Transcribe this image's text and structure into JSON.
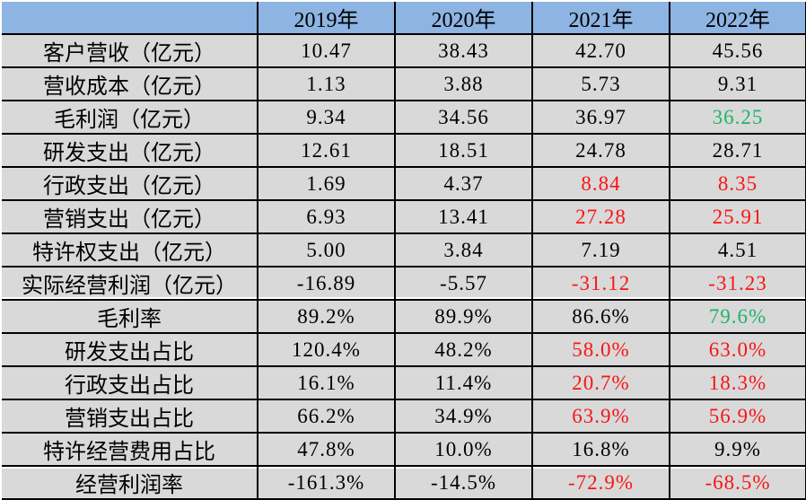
{
  "palette": {
    "header_bg": "#8db4e2",
    "row_bg": "#d9d9d9",
    "border": "#000000",
    "text": "#000000",
    "red": "#fa1414",
    "green": "#1fb46a"
  },
  "chart_data": {
    "type": "table",
    "title": "",
    "columns": [
      "",
      "2019年",
      "2020年",
      "2021年",
      "2022年"
    ],
    "rows": [
      {
        "label": "客户营收（亿元）",
        "values": [
          "10.47",
          "38.43",
          "42.70",
          "45.56"
        ],
        "colors": [
          "black",
          "black",
          "black",
          "black"
        ]
      },
      {
        "label": "营收成本（亿元）",
        "values": [
          "1.13",
          "3.88",
          "5.73",
          "9.31"
        ],
        "colors": [
          "black",
          "black",
          "black",
          "black"
        ]
      },
      {
        "label": "毛利润（亿元）",
        "values": [
          "9.34",
          "34.56",
          "36.97",
          "36.25"
        ],
        "colors": [
          "black",
          "black",
          "black",
          "green"
        ]
      },
      {
        "label": "研发支出（亿元）",
        "values": [
          "12.61",
          "18.51",
          "24.78",
          "28.71"
        ],
        "colors": [
          "black",
          "black",
          "black",
          "black"
        ]
      },
      {
        "label": "行政支出（亿元）",
        "values": [
          "1.69",
          "4.37",
          "8.84",
          "8.35"
        ],
        "colors": [
          "black",
          "black",
          "red",
          "red"
        ]
      },
      {
        "label": "营销支出（亿元）",
        "values": [
          "6.93",
          "13.41",
          "27.28",
          "25.91"
        ],
        "colors": [
          "black",
          "black",
          "red",
          "red"
        ]
      },
      {
        "label": "特许权支出（亿元）",
        "values": [
          "5.00",
          "3.84",
          "7.19",
          "4.51"
        ],
        "colors": [
          "black",
          "black",
          "black",
          "black"
        ]
      },
      {
        "label": "实际经营利润（亿元）",
        "values": [
          "-16.89",
          "-5.57",
          "-31.12",
          "-31.23"
        ],
        "colors": [
          "black",
          "black",
          "red",
          "red"
        ]
      },
      {
        "label": "毛利率",
        "values": [
          "89.2%",
          "89.9%",
          "86.6%",
          "79.6%"
        ],
        "colors": [
          "black",
          "black",
          "black",
          "green"
        ]
      },
      {
        "label": "研发支出占比",
        "values": [
          "120.4%",
          "48.2%",
          "58.0%",
          "63.0%"
        ],
        "colors": [
          "black",
          "black",
          "red",
          "red"
        ]
      },
      {
        "label": "行政支出占比",
        "values": [
          "16.1%",
          "11.4%",
          "20.7%",
          "18.3%"
        ],
        "colors": [
          "black",
          "black",
          "red",
          "red"
        ]
      },
      {
        "label": "营销支出占比",
        "values": [
          "66.2%",
          "34.9%",
          "63.9%",
          "56.9%"
        ],
        "colors": [
          "black",
          "black",
          "red",
          "red"
        ]
      },
      {
        "label": "特许经营费用占比",
        "values": [
          "47.8%",
          "10.0%",
          "16.8%",
          "9.9%"
        ],
        "colors": [
          "black",
          "black",
          "black",
          "black"
        ]
      },
      {
        "label": "经营利润率",
        "values": [
          "-161.3%",
          "-14.5%",
          "-72.9%",
          "-68.5%"
        ],
        "colors": [
          "black",
          "black",
          "red",
          "red"
        ]
      }
    ]
  }
}
